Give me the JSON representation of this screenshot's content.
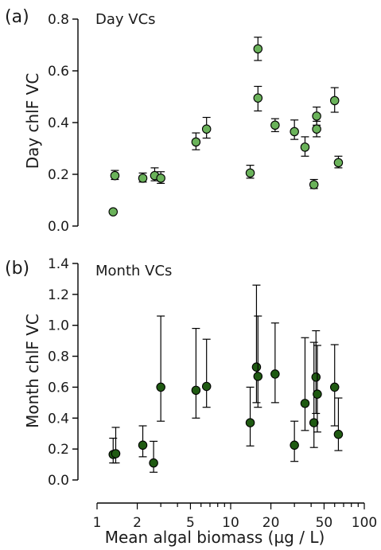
{
  "figure": {
    "xlabel": "Mean algal biomass (µg / L)",
    "xticks": [
      1,
      2,
      5,
      10,
      20,
      50,
      100
    ],
    "x_scale": "log",
    "xlim": [
      1,
      100
    ]
  },
  "chart_data": [
    {
      "type": "scatter",
      "panel": "(a)",
      "title": "Day VCs",
      "ylabel": "Day chlF VC",
      "ylim": [
        0,
        0.8
      ],
      "yticks": [
        "0.0",
        "0.2",
        "0.4",
        "0.6",
        "0.8"
      ],
      "marker_color": "#6ab25a",
      "points": [
        {
          "x": 1.32,
          "y": 0.055
        },
        {
          "x": 1.36,
          "y": 0.195,
          "lo": 0.18,
          "hi": 0.215
        },
        {
          "x": 2.2,
          "y": 0.185,
          "lo": 0.17,
          "hi": 0.205
        },
        {
          "x": 2.7,
          "y": 0.195,
          "lo": 0.175,
          "hi": 0.225
        },
        {
          "x": 3.0,
          "y": 0.185,
          "lo": 0.165,
          "hi": 0.21
        },
        {
          "x": 5.5,
          "y": 0.325,
          "lo": 0.295,
          "hi": 0.36
        },
        {
          "x": 6.6,
          "y": 0.375,
          "lo": 0.34,
          "hi": 0.42
        },
        {
          "x": 14.0,
          "y": 0.205,
          "lo": 0.185,
          "hi": 0.235
        },
        {
          "x": 16.0,
          "y": 0.685,
          "lo": 0.64,
          "hi": 0.73
        },
        {
          "x": 16.0,
          "y": 0.495,
          "lo": 0.445,
          "hi": 0.54
        },
        {
          "x": 21.5,
          "y": 0.39,
          "lo": 0.365,
          "hi": 0.415
        },
        {
          "x": 30.0,
          "y": 0.365,
          "lo": 0.335,
          "hi": 0.41
        },
        {
          "x": 36.0,
          "y": 0.305,
          "lo": 0.27,
          "hi": 0.345
        },
        {
          "x": 42.0,
          "y": 0.16,
          "lo": 0.145,
          "hi": 0.18
        },
        {
          "x": 44.0,
          "y": 0.425,
          "lo": 0.39,
          "hi": 0.46
        },
        {
          "x": 44.0,
          "y": 0.375,
          "lo": 0.345,
          "hi": 0.405
        },
        {
          "x": 60.0,
          "y": 0.485,
          "lo": 0.44,
          "hi": 0.535
        },
        {
          "x": 64.0,
          "y": 0.245,
          "lo": 0.225,
          "hi": 0.27
        }
      ]
    },
    {
      "type": "scatter",
      "panel": "(b)",
      "title": "Month VCs",
      "ylabel": "Month chlF VC",
      "ylim": [
        0,
        1.4
      ],
      "yticks": [
        "0.0",
        "0.2",
        "0.4",
        "0.6",
        "0.8",
        "1.0",
        "1.2",
        "1.4"
      ],
      "marker_color": "#1f5a12",
      "points": [
        {
          "x": 1.32,
          "y": 0.165,
          "lo": 0.11,
          "hi": 0.27
        },
        {
          "x": 1.38,
          "y": 0.17,
          "lo": 0.11,
          "hi": 0.34
        },
        {
          "x": 2.2,
          "y": 0.225,
          "lo": 0.15,
          "hi": 0.35
        },
        {
          "x": 2.65,
          "y": 0.11,
          "lo": 0.05,
          "hi": 0.25
        },
        {
          "x": 3.0,
          "y": 0.6,
          "lo": 0.38,
          "hi": 1.06
        },
        {
          "x": 5.5,
          "y": 0.58,
          "lo": 0.4,
          "hi": 0.98
        },
        {
          "x": 6.6,
          "y": 0.605,
          "lo": 0.47,
          "hi": 0.91
        },
        {
          "x": 14.0,
          "y": 0.37,
          "lo": 0.22,
          "hi": 0.6
        },
        {
          "x": 15.6,
          "y": 0.73,
          "lo": 0.5,
          "hi": 1.26
        },
        {
          "x": 16.0,
          "y": 0.67,
          "lo": 0.47,
          "hi": 1.06
        },
        {
          "x": 21.5,
          "y": 0.685,
          "lo": 0.5,
          "hi": 1.015
        },
        {
          "x": 30.0,
          "y": 0.225,
          "lo": 0.12,
          "hi": 0.38
        },
        {
          "x": 36.0,
          "y": 0.495,
          "lo": 0.32,
          "hi": 0.92
        },
        {
          "x": 42.0,
          "y": 0.37,
          "lo": 0.21,
          "hi": 0.89
        },
        {
          "x": 43.5,
          "y": 0.665,
          "lo": 0.43,
          "hi": 0.965
        },
        {
          "x": 44.5,
          "y": 0.555,
          "lo": 0.31,
          "hi": 0.87
        },
        {
          "x": 60.0,
          "y": 0.6,
          "lo": 0.35,
          "hi": 0.875
        },
        {
          "x": 64.0,
          "y": 0.295,
          "lo": 0.19,
          "hi": 0.53
        }
      ]
    }
  ]
}
